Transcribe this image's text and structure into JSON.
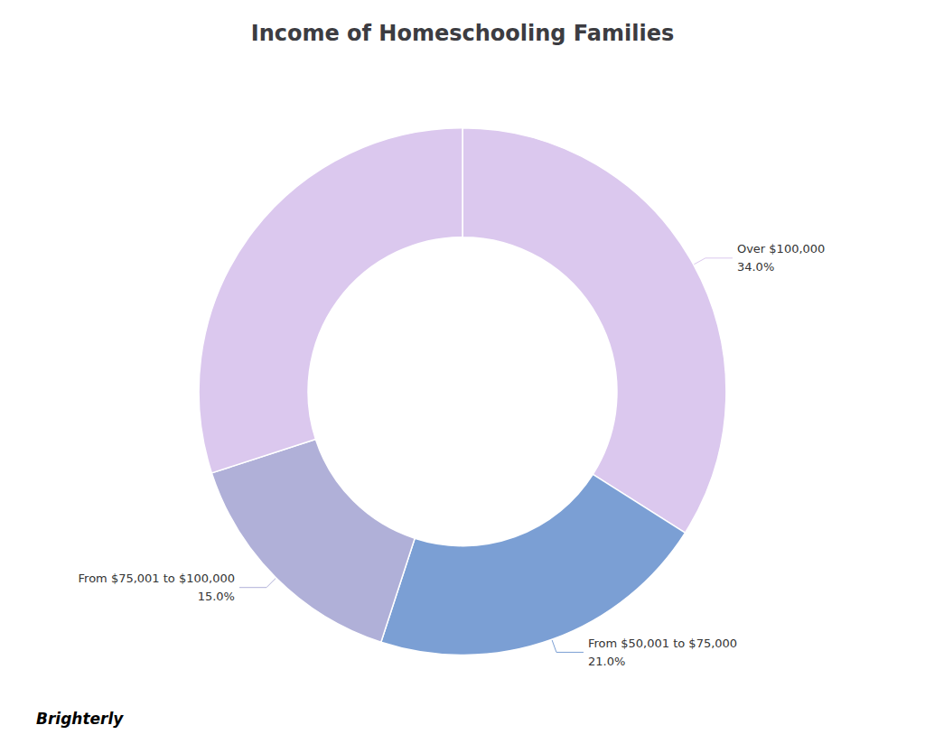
{
  "chart_data": {
    "type": "pie",
    "title": "Income of Homeschooling Families",
    "categories": [
      "Over $100,000",
      "From $50,001 to $75,000",
      "From $75,001 to $100,000",
      null
    ],
    "values": [
      34.0,
      21.0,
      15.0,
      30.0
    ],
    "value_labels": [
      "34.0%",
      "21.0%",
      "15.0%",
      null
    ],
    "colors": [
      "#dbc8ee",
      "#7b9fd4",
      "#b0b0d8",
      "#dbc8ee"
    ],
    "data_labels": true,
    "annotations": [
      "Brighterly"
    ]
  }
}
